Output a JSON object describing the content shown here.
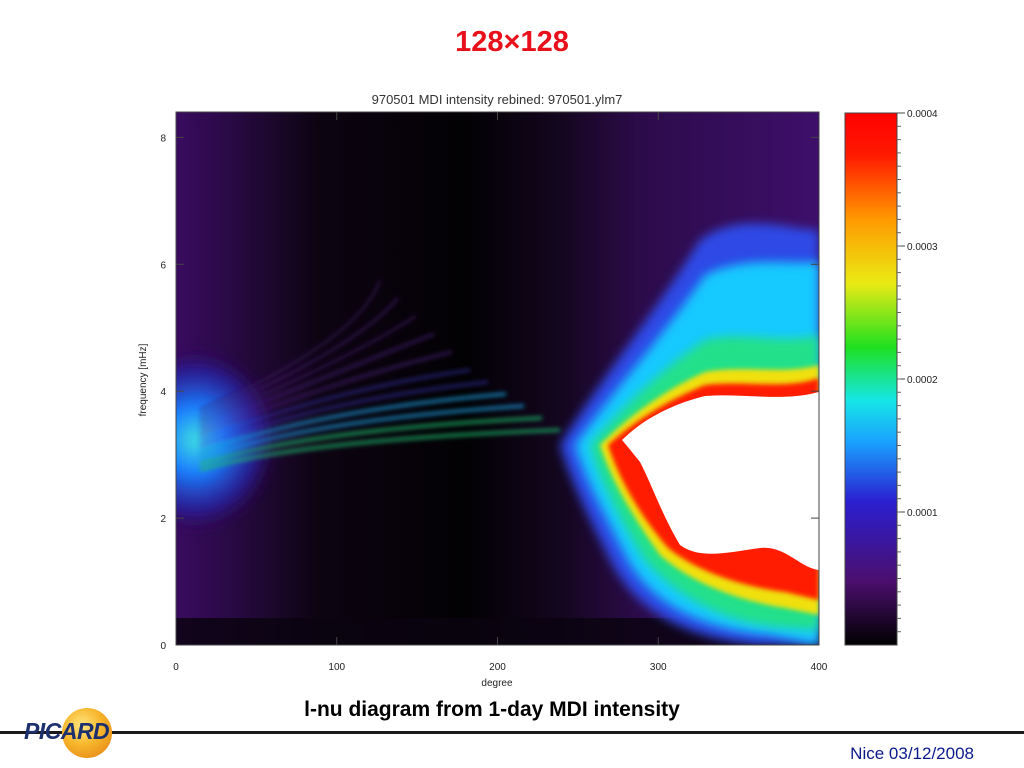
{
  "slide": {
    "title": "128×128",
    "caption": "l-nu diagram from 1-day MDI intensity",
    "footer": "Nice 03/12/2008",
    "logo_text": "PICARD"
  },
  "chart_data": {
    "type": "heatmap",
    "title": "970501 MDI intensity rebined: 970501.ylm7",
    "xlabel": "degree",
    "ylabel": "frequency [mHz]",
    "xlim": [
      0,
      400
    ],
    "ylim": [
      0,
      8.4
    ],
    "x_ticks": [
      0,
      100,
      200,
      300,
      400
    ],
    "y_ticks": [
      0,
      2,
      4,
      6,
      8
    ],
    "colorbar": {
      "range": [
        0,
        0.0004
      ],
      "ticks": [
        "0.0001",
        "0.0002",
        "0.0003",
        "0.0004"
      ],
      "tick_values": [
        0.0001,
        0.0002,
        0.0003,
        0.0004
      ],
      "colormap": [
        "#000000",
        "#4b0f6e",
        "#2a1fd0",
        "#1aa0ff",
        "#16e6e6",
        "#1fe01f",
        "#eaea14",
        "#ff9a00",
        "#ff1a00",
        "#ff0000"
      ]
    },
    "grid": false,
    "legend": "none"
  },
  "colors": {
    "title_red": "#e8101a",
    "footer_blue": "#0a1a8a"
  }
}
